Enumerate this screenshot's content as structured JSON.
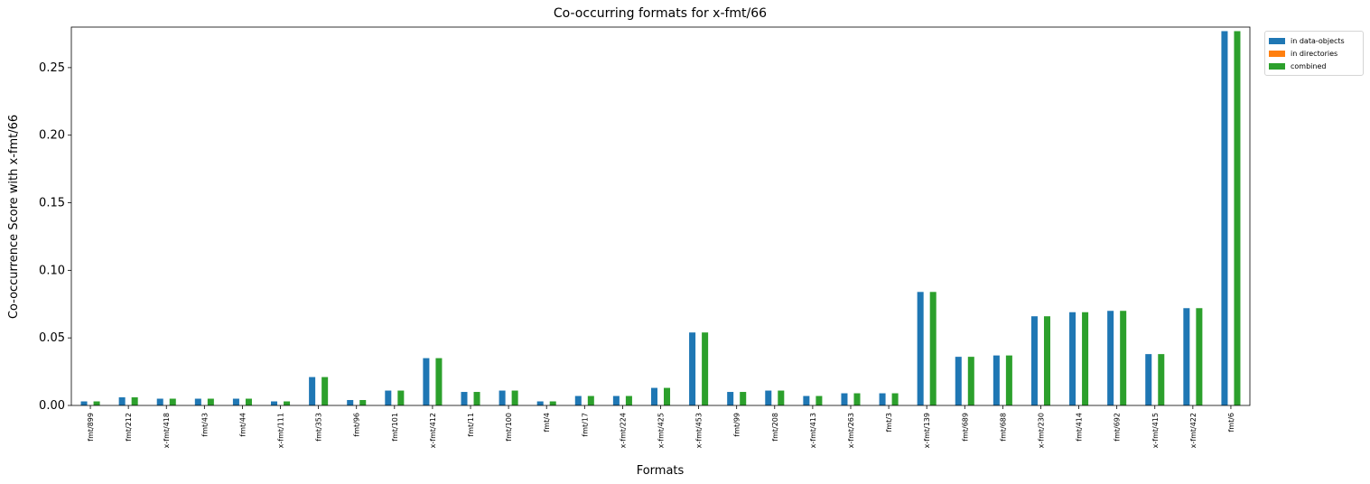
{
  "chart_data": {
    "type": "bar",
    "title": "Co-occurring formats for x-fmt/66",
    "xlabel": "Formats",
    "ylabel": "Co-occurrence Score with x-fmt/66",
    "ylim": [
      0,
      0.28
    ],
    "yticks": [
      "0.00",
      "0.05",
      "0.10",
      "0.15",
      "0.20",
      "0.25"
    ],
    "legend_position": "outside top-right",
    "grid": false,
    "categories": [
      "fmt/899",
      "fmt/212",
      "x-fmt/418",
      "fmt/43",
      "fmt/44",
      "x-fmt/111",
      "fmt/353",
      "fmt/96",
      "fmt/101",
      "x-fmt/412",
      "fmt/11",
      "fmt/100",
      "fmt/4",
      "fmt/17",
      "x-fmt/224",
      "x-fmt/425",
      "x-fmt/453",
      "fmt/99",
      "fmt/208",
      "x-fmt/413",
      "x-fmt/263",
      "fmt/3",
      "x-fmt/139",
      "fmt/689",
      "fmt/688",
      "x-fmt/230",
      "fmt/414",
      "fmt/692",
      "x-fmt/415",
      "x-fmt/422",
      "fmt/6"
    ],
    "series": [
      {
        "name": "in data-objects",
        "color": "#1f77b4",
        "values": [
          0.003,
          0.006,
          0.005,
          0.005,
          0.005,
          0.003,
          0.021,
          0.004,
          0.011,
          0.035,
          0.01,
          0.011,
          0.003,
          0.007,
          0.007,
          0.013,
          0.054,
          0.01,
          0.011,
          0.007,
          0.009,
          0.009,
          0.084,
          0.036,
          0.037,
          0.066,
          0.069,
          0.07,
          0.038,
          0.072,
          0.277
        ]
      },
      {
        "name": "in directories",
        "color": "#ff7f0e",
        "values": [
          0,
          0,
          0,
          0,
          0,
          0,
          0,
          0,
          0,
          0,
          0,
          0,
          0,
          0,
          0,
          0,
          0,
          0,
          0,
          0,
          0,
          0,
          0,
          0,
          0,
          0,
          0,
          0,
          0,
          0,
          0
        ]
      },
      {
        "name": "combined",
        "color": "#2ca02c",
        "values": [
          0.003,
          0.006,
          0.005,
          0.005,
          0.005,
          0.003,
          0.021,
          0.004,
          0.011,
          0.035,
          0.01,
          0.011,
          0.003,
          0.007,
          0.007,
          0.013,
          0.054,
          0.01,
          0.011,
          0.007,
          0.009,
          0.009,
          0.084,
          0.036,
          0.037,
          0.066,
          0.069,
          0.07,
          0.038,
          0.072,
          0.277
        ]
      }
    ]
  }
}
